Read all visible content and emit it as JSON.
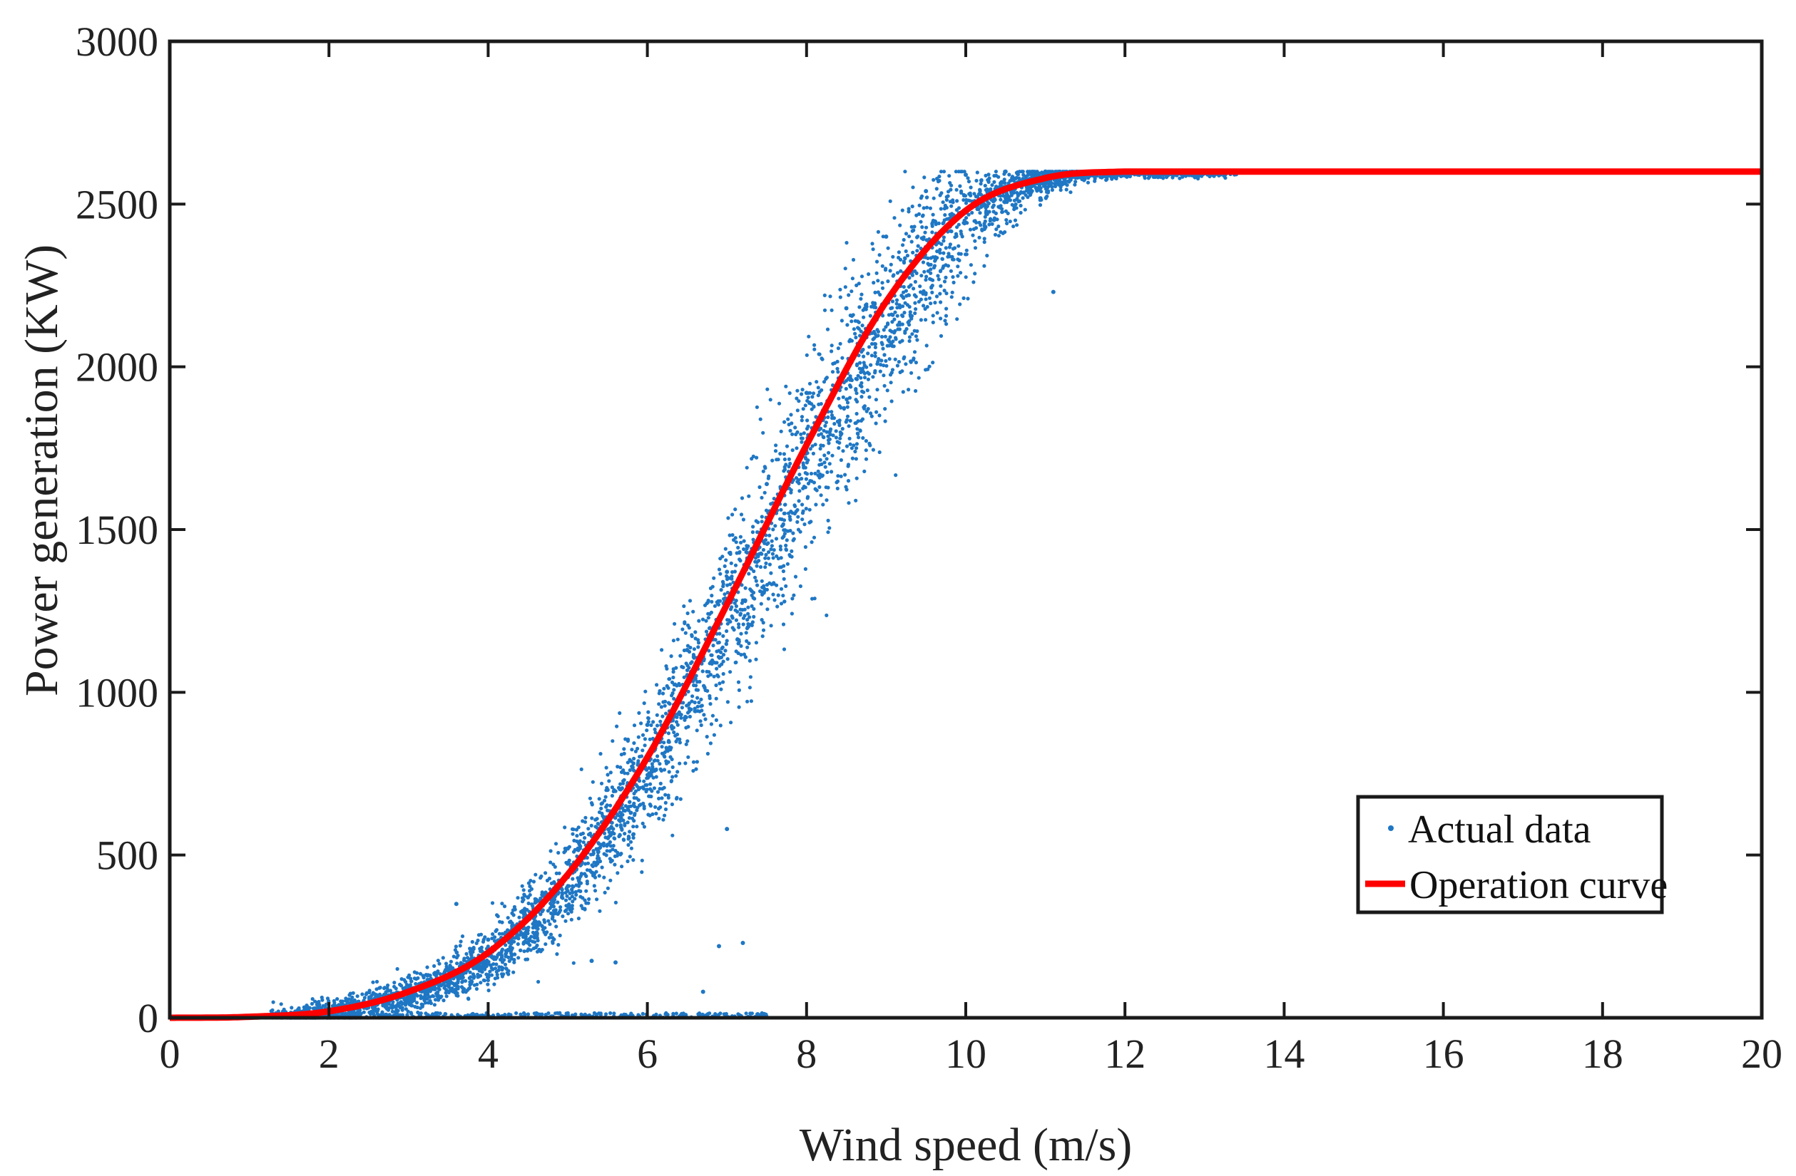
{
  "chart_data": {
    "type": "scatter",
    "title": "",
    "xlabel": "Wind speed (m/s)",
    "ylabel": "Power generation (KW)",
    "xlim": [
      0,
      20
    ],
    "ylim": [
      0,
      3000
    ],
    "xticks": [
      0,
      2,
      4,
      6,
      8,
      10,
      12,
      14,
      16,
      18,
      20
    ],
    "yticks": [
      0,
      500,
      1000,
      1500,
      2000,
      2500,
      3000
    ],
    "grid": false,
    "legend_position": "bottom-right",
    "series": [
      {
        "name": "Actual data",
        "kind": "scatter",
        "color": "#1f77c4",
        "description_points": "dense cloud scattered around the operation curve",
        "points": [
          [
            2.0,
            10
          ],
          [
            2.5,
            40
          ],
          [
            3.0,
            90
          ],
          [
            3.5,
            150
          ],
          [
            4.0,
            240
          ],
          [
            4.5,
            370
          ],
          [
            5.0,
            520
          ],
          [
            5.5,
            700
          ],
          [
            6.0,
            900
          ],
          [
            6.5,
            1130
          ],
          [
            7.0,
            1370
          ],
          [
            7.5,
            1640
          ],
          [
            8.0,
            1920
          ],
          [
            8.5,
            2180
          ],
          [
            9.0,
            2400
          ],
          [
            9.5,
            2540
          ],
          [
            10.0,
            2590
          ],
          [
            10.5,
            2600
          ],
          [
            11.0,
            2600
          ],
          [
            12.0,
            2600
          ],
          [
            3.6,
            350
          ],
          [
            7.0,
            580
          ],
          [
            7.2,
            230
          ],
          [
            6.9,
            220
          ],
          [
            11.1,
            2230
          ],
          [
            5.6,
            170
          ],
          [
            5.3,
            175
          ],
          [
            6.7,
            80
          ]
        ]
      },
      {
        "name": "Operation curve",
        "kind": "line",
        "color": "#ff0000",
        "x": [
          0,
          1,
          2,
          3,
          4,
          5,
          6,
          7,
          8,
          9,
          10,
          11,
          12,
          13,
          14,
          15,
          16,
          17,
          18,
          19,
          20
        ],
        "y": [
          0,
          3,
          20,
          80,
          200,
          440,
          800,
          1270,
          1760,
          2200,
          2480,
          2580,
          2600,
          2600,
          2600,
          2600,
          2600,
          2600,
          2600,
          2600,
          2600
        ]
      }
    ]
  }
}
